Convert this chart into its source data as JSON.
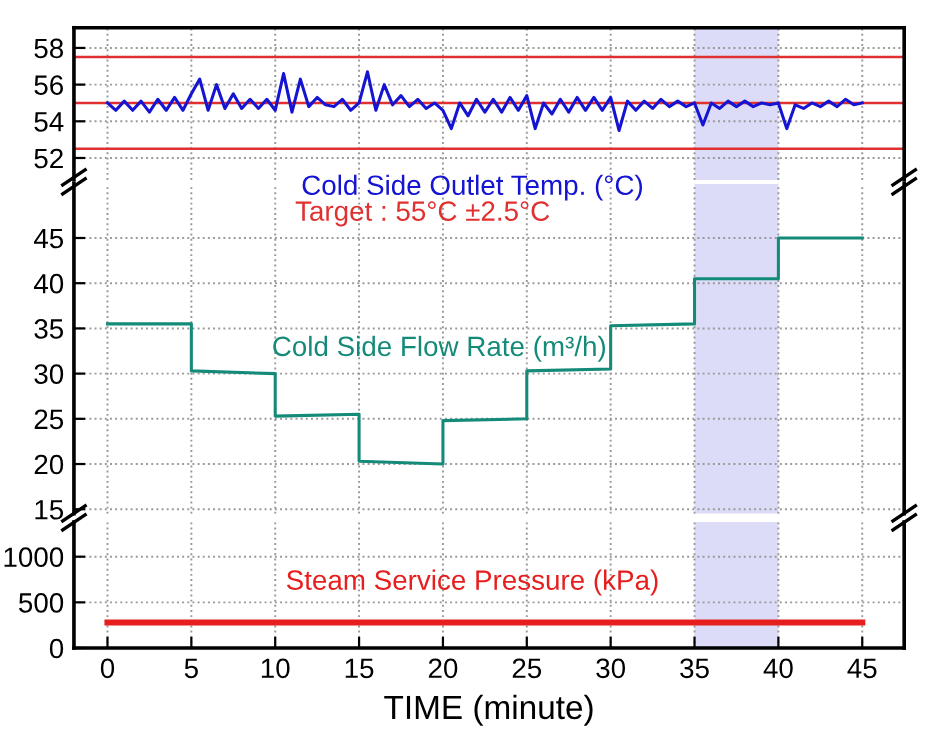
{
  "chart_data": [
    {
      "type": "line",
      "xlim": [
        -2,
        47.5
      ],
      "xticks": [
        0,
        5,
        10,
        15,
        20,
        25,
        30,
        35,
        40,
        45
      ],
      "ylim": [
        50.8,
        59.1
      ],
      "yticks": [
        52,
        54,
        56,
        58
      ],
      "tick_labels": "y",
      "grid": true,
      "series": [
        {
          "name": "Cold Side Outlet Temp. (°C)",
          "color": "#1414d2",
          "x": [
            0,
            0.5,
            1,
            1.5,
            2,
            2.5,
            3,
            3.5,
            4,
            4.5,
            5,
            5.5,
            6,
            6.5,
            7,
            7.5,
            8,
            8.5,
            9,
            9.5,
            10,
            10.5,
            11,
            11.5,
            12,
            12.5,
            13,
            13.5,
            14,
            14.5,
            15,
            15.5,
            16,
            16.5,
            17,
            17.5,
            18,
            18.5,
            19,
            19.5,
            20,
            20.5,
            21,
            21.5,
            22,
            22.5,
            23,
            23.5,
            24,
            24.5,
            25,
            25.5,
            26,
            26.5,
            27,
            27.5,
            28,
            28.5,
            29,
            29.5,
            30,
            30.5,
            31,
            31.5,
            32,
            32.5,
            33,
            33.5,
            34,
            34.5,
            35,
            35.5,
            36,
            36.5,
            37,
            37.5,
            38,
            38.5,
            39,
            39.5,
            40,
            40.5,
            41,
            41.5,
            42,
            42.5,
            43,
            43.5,
            44,
            44.5,
            45
          ],
          "values": [
            55.0,
            54.6,
            55.1,
            54.6,
            55.1,
            54.5,
            55.2,
            54.6,
            55.3,
            54.6,
            55.5,
            56.3,
            54.6,
            56.0,
            54.7,
            55.5,
            54.7,
            55.2,
            54.7,
            55.2,
            54.6,
            56.6,
            54.5,
            56.3,
            54.8,
            55.3,
            54.9,
            54.8,
            55.2,
            54.6,
            55.0,
            56.7,
            54.6,
            56.0,
            54.9,
            55.4,
            54.8,
            55.2,
            54.7,
            55.0,
            54.6,
            53.6,
            55.0,
            54.3,
            55.2,
            54.5,
            55.2,
            54.5,
            55.3,
            54.6,
            55.4,
            53.6,
            55.0,
            54.4,
            55.2,
            54.5,
            55.3,
            54.6,
            55.3,
            54.6,
            55.3,
            53.5,
            55.1,
            54.6,
            55.1,
            54.7,
            55.2,
            54.8,
            55.1,
            54.8,
            55.0,
            53.8,
            55.0,
            54.7,
            55.1,
            54.8,
            55.1,
            54.8,
            55.0,
            54.9,
            55.0,
            53.6,
            54.9,
            54.7,
            55.0,
            54.8,
            55.1,
            54.8,
            55.2,
            54.9,
            55.0
          ]
        }
      ],
      "ref_lines": [
        {
          "axis": "y",
          "value": 57.5,
          "color": "#e03030"
        },
        {
          "axis": "y",
          "value": 55,
          "color": "#e03030"
        },
        {
          "axis": "y",
          "value": 52.5,
          "color": "#e03030"
        }
      ],
      "bands": [
        {
          "axis": "x",
          "from": 35,
          "to": 40,
          "color": "#dcdcf8"
        }
      ],
      "annotations": [
        "Target : 55°C ±2.5°C"
      ]
    },
    {
      "type": "line",
      "xlim": [
        -2,
        47.5
      ],
      "xticks": [
        0,
        5,
        10,
        15,
        20,
        25,
        30,
        35,
        40,
        45
      ],
      "ylim": [
        14.5,
        51
      ],
      "yticks": [
        15,
        20,
        25,
        30,
        35,
        40,
        45
      ],
      "tick_labels": "y",
      "grid": true,
      "series": [
        {
          "name": "Cold Side Flow Rate (m³/h)",
          "color": "#148a78",
          "x": [
            0,
            5,
            5,
            10,
            10,
            15,
            15,
            20,
            20,
            25,
            25,
            30,
            30,
            35,
            35,
            40,
            40,
            45
          ],
          "values": [
            35.5,
            35.5,
            30.3,
            30,
            25.3,
            25.5,
            20.3,
            20,
            24.8,
            25,
            30.3,
            30.5,
            35.3,
            35.5,
            40.5,
            40.5,
            45,
            45
          ]
        }
      ],
      "bands": [
        {
          "axis": "x",
          "from": 35,
          "to": 40,
          "color": "#dcdcf8"
        }
      ]
    },
    {
      "type": "line",
      "xlim": [
        -2,
        47.5
      ],
      "xticks": [
        0,
        5,
        10,
        15,
        20,
        25,
        30,
        35,
        40,
        45
      ],
      "ylim": [
        0,
        1380
      ],
      "yticks": [
        0,
        500,
        1000
      ],
      "grid": true,
      "xlabel": "TIME (minute)",
      "series": [
        {
          "name": "Steam Service Pressure (kPa)",
          "color": "#e61e1e",
          "x": [
            0,
            45
          ],
          "values": [
            280,
            280
          ]
        }
      ],
      "bands": [
        {
          "axis": "x",
          "from": 35,
          "to": 40,
          "color": "#dcdcf8"
        }
      ]
    }
  ]
}
